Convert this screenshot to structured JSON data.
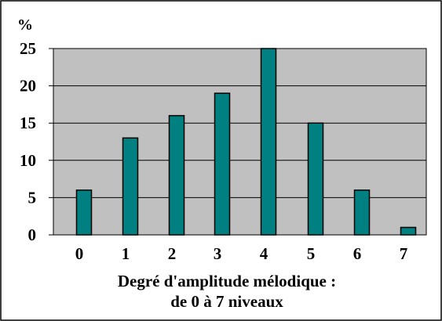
{
  "chart_data": {
    "type": "bar",
    "categories": [
      "0",
      "1",
      "2",
      "3",
      "4",
      "5",
      "6",
      "7"
    ],
    "values": [
      6,
      13,
      16,
      19,
      25,
      15,
      6,
      1
    ],
    "ylabel": "%",
    "xlabel_lines": [
      "Degré d'amplitude mélodique :",
      "de 0 à 7 niveaux"
    ],
    "yticks": [
      "0",
      "5",
      "10",
      "15",
      "20",
      "25"
    ],
    "ylim": [
      0,
      25
    ],
    "grid": true,
    "legend": "none",
    "colors": {
      "bar_fill": "#008080",
      "bar_stroke": "#000000",
      "plot_background": "#c0c0c0",
      "gridline": "#000000",
      "frame": "#000000"
    }
  }
}
